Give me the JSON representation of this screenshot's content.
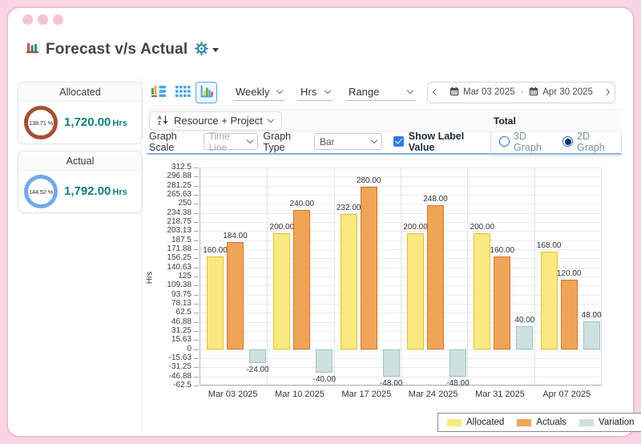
{
  "header": {
    "title": "Forecast v/s Actual"
  },
  "sidebar": {
    "cards": [
      {
        "title": "Allocated",
        "percent": "138.71 %",
        "value": "1,720.00",
        "unit": "Hrs",
        "ring_color": "#a65133"
      },
      {
        "title": "Actual",
        "percent": "144.52 %",
        "value": "1,792.00",
        "unit": "Hrs",
        "ring_color": "#72a9e9"
      }
    ]
  },
  "toolbar": {
    "period": "Weekly",
    "unit": "Hrs",
    "range": "Range",
    "date_from": "Mar 03 2025",
    "date_separator": "-",
    "date_to": "Apr 30 2025"
  },
  "grouping_row": {
    "group_by": "Resource + Project",
    "total_label": "Total"
  },
  "options_row": {
    "graph_scale_label": "Graph Scale",
    "graph_scale_value": "Time Line",
    "graph_type_label": "Graph Type",
    "graph_type_value": "Bar",
    "show_label_value": "Show Label Value",
    "show_label_checked": true,
    "mode_3d_label": "3D Graph",
    "mode_2d_label": "2D Graph",
    "selected_mode": "2D Graph"
  },
  "icons": {
    "title-icon": "bar-chart pictogram",
    "gear-icon": "settings gear (teal blue)",
    "caret-down-icon": "▼",
    "view-combo-icon": "mini bars + list view",
    "view-grid-icon": "blue grid view",
    "view-chart-icon": "colored bar chart view (selected)",
    "calendar-icon": "calendar",
    "sort-az-icon": "A-Z sort with down arrow",
    "chevron-down-icon": "⌄",
    "chevron-left-icon": "‹",
    "chevron-right-icon": "›"
  },
  "colors": {
    "frame_pink": "#f8d5e2",
    "accent_teal_value": "#12817d",
    "option_underline_blue": "#8aafd6",
    "selected_icon_border": "#58a6e8"
  },
  "chart_data": {
    "type": "bar",
    "title": "",
    "xlabel": "",
    "ylabel": "Hrs",
    "ylim": [
      -62.5,
      312.5
    ],
    "grid": true,
    "legend_position": "bottom-right",
    "categories": [
      "Mar 03 2025",
      "Mar 10 2025",
      "Mar 17 2025",
      "Mar 24 2025",
      "Mar 31 2025",
      "Apr 07 2025"
    ],
    "series": [
      {
        "name": "Allocated",
        "color": "#f9e97e",
        "border_color": "#e2c13d",
        "values": [
          160,
          200,
          232,
          200,
          200,
          168
        ]
      },
      {
        "name": "Actuals",
        "color": "#f0a458",
        "border_color": "#d2752b",
        "values": [
          184,
          240,
          280,
          248,
          160,
          120
        ]
      },
      {
        "name": "Variation",
        "color": "#cde1e1",
        "border_color": "#9cc4c6",
        "values": [
          -24,
          -40,
          -48,
          -48,
          40,
          48
        ]
      }
    ],
    "yticks": [
      "312.5",
      "296.88",
      "281.25",
      "265.63",
      "250",
      "234.38",
      "218.75",
      "203.13",
      "187.5",
      "171.88",
      "156.25",
      "140.63",
      "125",
      "109.38",
      "93.75",
      "78.13",
      "62.5",
      "46.88",
      "31.25",
      "15.63",
      "0",
      "-15.63",
      "-31.25",
      "-46.88",
      "-62.5"
    ],
    "value_label_format": "0.00"
  }
}
